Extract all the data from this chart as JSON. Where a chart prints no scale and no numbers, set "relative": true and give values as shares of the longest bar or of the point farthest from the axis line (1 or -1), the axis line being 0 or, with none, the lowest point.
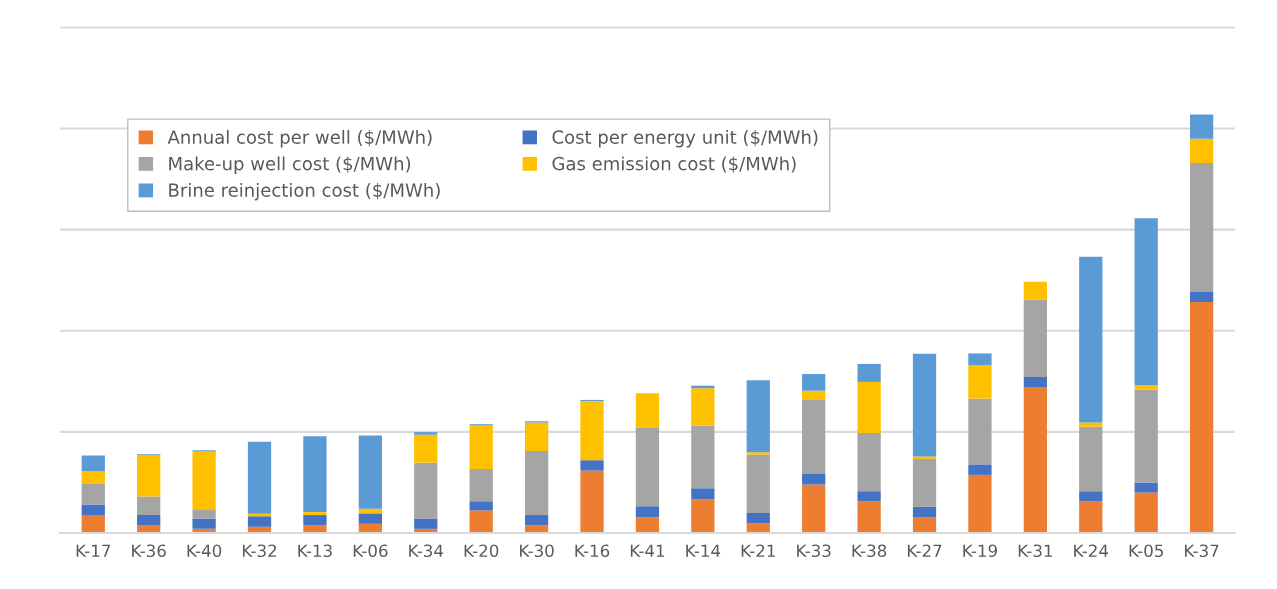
{
  "chart_data": {
    "type": "bar",
    "stacked": true,
    "relative": true,
    "grid": "y",
    "legend": "top left",
    "categories": [
      "K-17",
      "K-36",
      "K-40",
      "K-32",
      "K-13",
      "K-06",
      "K-34",
      "K-20",
      "K-30",
      "K-16",
      "K-41",
      "K-14",
      "K-21",
      "K-33",
      "K-38",
      "K-27",
      "K-19",
      "K-31",
      "K-24",
      "K-05",
      "K-37"
    ],
    "series": [
      {
        "name": "Annual cost per well ($/MWh)",
        "color": "#ed7d31",
        "values": [
          0.043,
          0.019,
          0.01,
          0.015,
          0.018,
          0.022,
          0.01,
          0.054,
          0.018,
          0.149,
          0.038,
          0.081,
          0.023,
          0.116,
          0.076,
          0.038,
          0.139,
          0.349,
          0.076,
          0.097,
          0.552
        ]
      },
      {
        "name": "Cost per energy unit ($/MWh)",
        "color": "#4472c4",
        "values": [
          0.025,
          0.024,
          0.025,
          0.025,
          0.025,
          0.025,
          0.025,
          0.022,
          0.025,
          0.025,
          0.026,
          0.026,
          0.025,
          0.025,
          0.024,
          0.025,
          0.025,
          0.024,
          0.024,
          0.024,
          0.024
        ]
      },
      {
        "name": "Make-up well cost ($/MWh)",
        "color": "#a5a5a5",
        "values": [
          0.049,
          0.044,
          0.022,
          0,
          0,
          0,
          0.133,
          0.077,
          0.153,
          0,
          0.187,
          0.15,
          0.139,
          0.177,
          0.139,
          0.114,
          0.157,
          0.184,
          0.154,
          0.222,
          0.308
        ]
      },
      {
        "name": "Gas emission cost ($/MWh)",
        "color": "#ffc000",
        "values": [
          0.031,
          0.1,
          0.138,
          0.006,
          0.007,
          0.011,
          0.067,
          0.104,
          0.068,
          0.141,
          0.083,
          0.089,
          0.006,
          0.022,
          0.122,
          0.006,
          0.08,
          0.043,
          0.01,
          0.01,
          0.058
        ]
      },
      {
        "name": "Brine reinjection cost ($/MWh)",
        "color": "#5b9bd5",
        "values": [
          0.037,
          0.002,
          0.003,
          0.172,
          0.181,
          0.175,
          0.006,
          0.003,
          0.003,
          0.003,
          0,
          0.006,
          0.172,
          0.04,
          0.043,
          0.245,
          0.028,
          0,
          0.396,
          0.399,
          0.058
        ]
      }
    ]
  }
}
